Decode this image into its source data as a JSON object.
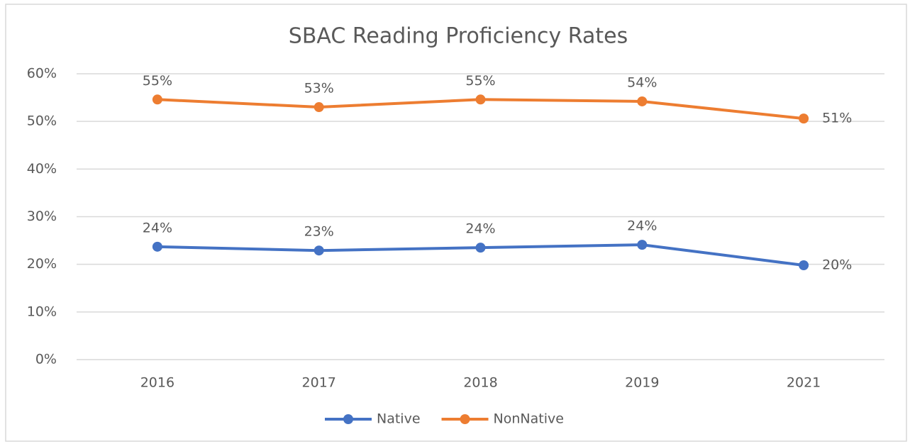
{
  "chart_data": {
    "type": "line",
    "title": "SBAC Reading Proficiency Rates",
    "categories": [
      "2016",
      "2017",
      "2018",
      "2019",
      "2021"
    ],
    "series": [
      {
        "name": "Native",
        "color": "#4472c4",
        "values": [
          23.7,
          22.9,
          23.5,
          24.1,
          19.8
        ],
        "value_labels": [
          "24%",
          "23%",
          "24%",
          "24%",
          "20%"
        ]
      },
      {
        "name": "NonNative",
        "color": "#ed7d31",
        "values": [
          54.6,
          53.0,
          54.6,
          54.2,
          50.6
        ],
        "value_labels": [
          "55%",
          "53%",
          "55%",
          "54%",
          "51%"
        ]
      }
    ],
    "ylim": [
      0,
      60
    ],
    "yticks": [
      {
        "value": 0,
        "label": "0%"
      },
      {
        "value": 10,
        "label": "10%"
      },
      {
        "value": 20,
        "label": "20%"
      },
      {
        "value": 30,
        "label": "30%"
      },
      {
        "value": 40,
        "label": "40%"
      },
      {
        "value": 50,
        "label": "50%"
      },
      {
        "value": 60,
        "label": "60%"
      }
    ],
    "grid": true,
    "legend": "bottom"
  }
}
